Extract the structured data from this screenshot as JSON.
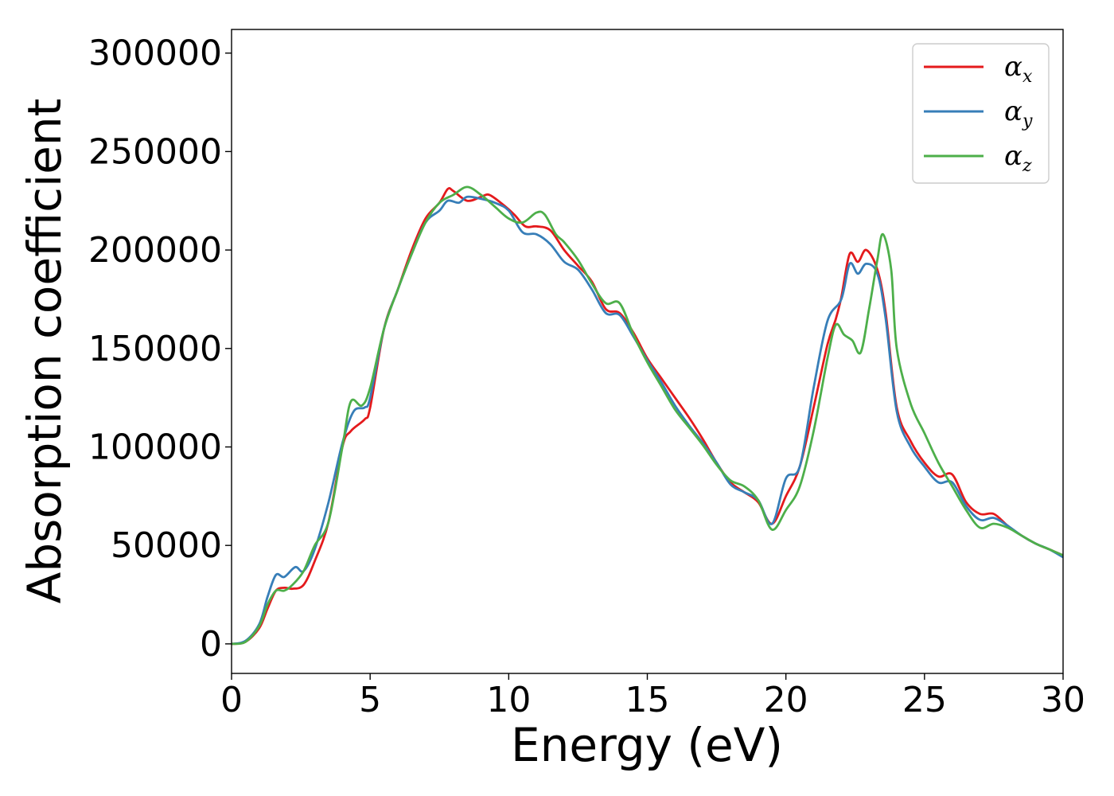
{
  "chart_data": {
    "type": "line",
    "title": "",
    "xlabel": "Energy (eV)",
    "ylabel": "Absorption coefficient",
    "xlim": [
      0,
      30
    ],
    "ylim": [
      -15000,
      312000
    ],
    "xticks": [
      0,
      5,
      10,
      15,
      20,
      25,
      30
    ],
    "yticks": [
      0,
      50000,
      100000,
      150000,
      200000,
      250000,
      300000
    ],
    "xtick_labels": [
      "0",
      "5",
      "10",
      "15",
      "20",
      "25",
      "30"
    ],
    "ytick_labels": [
      "0",
      "50000",
      "100000",
      "150000",
      "200000",
      "250000",
      "300000"
    ],
    "grid": false,
    "legend": "top-right",
    "series": [
      {
        "name": "α",
        "subscript": "x",
        "color": "#e41a1c",
        "points": [
          [
            0,
            0
          ],
          [
            0.5,
            1000
          ],
          [
            1,
            8000
          ],
          [
            1.3,
            18000
          ],
          [
            1.6,
            27000
          ],
          [
            1.9,
            28500
          ],
          [
            2.2,
            28000
          ],
          [
            2.6,
            30000
          ],
          [
            3,
            42000
          ],
          [
            3.5,
            62000
          ],
          [
            4,
            100000
          ],
          [
            4.3,
            108000
          ],
          [
            4.8,
            114000
          ],
          [
            5,
            120000
          ],
          [
            5.5,
            160000
          ],
          [
            6,
            180000
          ],
          [
            6.5,
            200000
          ],
          [
            7,
            216000
          ],
          [
            7.5,
            224000
          ],
          [
            7.8,
            231000
          ],
          [
            8,
            230000
          ],
          [
            8.5,
            225000
          ],
          [
            9,
            227000
          ],
          [
            9.3,
            228000
          ],
          [
            9.8,
            223000
          ],
          [
            10.2,
            218000
          ],
          [
            10.6,
            212000
          ],
          [
            11,
            212000
          ],
          [
            11.5,
            210000
          ],
          [
            12,
            200000
          ],
          [
            12.5,
            192000
          ],
          [
            13,
            184000
          ],
          [
            13.5,
            170000
          ],
          [
            14,
            168000
          ],
          [
            14.5,
            158000
          ],
          [
            15,
            145000
          ],
          [
            15.5,
            135000
          ],
          [
            16,
            125000
          ],
          [
            16.5,
            115000
          ],
          [
            17,
            104000
          ],
          [
            17.5,
            92000
          ],
          [
            18,
            82000
          ],
          [
            18.5,
            77000
          ],
          [
            19,
            72000
          ],
          [
            19.5,
            61000
          ],
          [
            20,
            75000
          ],
          [
            20.5,
            90000
          ],
          [
            21,
            120000
          ],
          [
            21.5,
            152000
          ],
          [
            21.8,
            165000
          ],
          [
            22,
            176000
          ],
          [
            22.3,
            198000
          ],
          [
            22.6,
            194000
          ],
          [
            22.9,
            200000
          ],
          [
            23.3,
            190000
          ],
          [
            23.6,
            168000
          ],
          [
            24,
            120000
          ],
          [
            24.5,
            103000
          ],
          [
            25,
            92000
          ],
          [
            25.5,
            85000
          ],
          [
            26,
            86000
          ],
          [
            26.5,
            72000
          ],
          [
            27,
            66000
          ],
          [
            27.5,
            66000
          ],
          [
            28,
            60000
          ],
          [
            28.5,
            55000
          ],
          [
            29,
            51000
          ],
          [
            29.5,
            48000
          ],
          [
            30,
            45000
          ]
        ]
      },
      {
        "name": "α",
        "subscript": "y",
        "color": "#377eb8",
        "points": [
          [
            0,
            0
          ],
          [
            0.5,
            1500
          ],
          [
            1,
            10000
          ],
          [
            1.3,
            24000
          ],
          [
            1.6,
            35000
          ],
          [
            1.9,
            34000
          ],
          [
            2.3,
            39000
          ],
          [
            2.6,
            37000
          ],
          [
            3,
            48000
          ],
          [
            3.5,
            72000
          ],
          [
            4,
            102000
          ],
          [
            4.4,
            118000
          ],
          [
            4.8,
            120000
          ],
          [
            5,
            125000
          ],
          [
            5.5,
            160000
          ],
          [
            6,
            180000
          ],
          [
            6.5,
            198000
          ],
          [
            7,
            214000
          ],
          [
            7.5,
            220000
          ],
          [
            7.8,
            225000
          ],
          [
            8.2,
            224000
          ],
          [
            8.5,
            227000
          ],
          [
            9,
            226000
          ],
          [
            9.5,
            224000
          ],
          [
            10,
            220000
          ],
          [
            10.5,
            209000
          ],
          [
            11,
            208000
          ],
          [
            11.5,
            203000
          ],
          [
            12,
            194000
          ],
          [
            12.5,
            190000
          ],
          [
            13,
            180000
          ],
          [
            13.5,
            168000
          ],
          [
            14,
            167000
          ],
          [
            14.5,
            156000
          ],
          [
            15,
            144000
          ],
          [
            15.5,
            133000
          ],
          [
            16,
            121000
          ],
          [
            16.5,
            111000
          ],
          [
            17,
            102000
          ],
          [
            17.5,
            92000
          ],
          [
            18,
            81000
          ],
          [
            18.5,
            77000
          ],
          [
            19,
            73000
          ],
          [
            19.5,
            61000
          ],
          [
            20,
            84000
          ],
          [
            20.5,
            90000
          ],
          [
            21,
            130000
          ],
          [
            21.5,
            164000
          ],
          [
            22,
            175000
          ],
          [
            22.3,
            193000
          ],
          [
            22.6,
            188000
          ],
          [
            22.9,
            193000
          ],
          [
            23.3,
            188000
          ],
          [
            23.6,
            165000
          ],
          [
            24,
            118000
          ],
          [
            24.5,
            100000
          ],
          [
            25,
            90000
          ],
          [
            25.5,
            82000
          ],
          [
            26,
            82000
          ],
          [
            26.5,
            70000
          ],
          [
            27,
            63000
          ],
          [
            27.5,
            64000
          ],
          [
            28,
            60000
          ],
          [
            28.5,
            55000
          ],
          [
            29,
            51000
          ],
          [
            29.5,
            48000
          ],
          [
            30,
            44000
          ]
        ]
      },
      {
        "name": "α",
        "subscript": "z",
        "color": "#4daf4a",
        "points": [
          [
            0,
            0
          ],
          [
            0.5,
            1000
          ],
          [
            1,
            9000
          ],
          [
            1.3,
            20000
          ],
          [
            1.6,
            27000
          ],
          [
            1.9,
            27000
          ],
          [
            2.2,
            30000
          ],
          [
            2.6,
            37000
          ],
          [
            3,
            50000
          ],
          [
            3.5,
            62000
          ],
          [
            4,
            100000
          ],
          [
            4.3,
            123000
          ],
          [
            4.7,
            121000
          ],
          [
            5,
            130000
          ],
          [
            5.5,
            160000
          ],
          [
            6,
            180000
          ],
          [
            6.5,
            198000
          ],
          [
            7,
            214000
          ],
          [
            7.5,
            224000
          ],
          [
            8,
            228000
          ],
          [
            8.5,
            232000
          ],
          [
            9,
            228000
          ],
          [
            9.5,
            222000
          ],
          [
            10,
            216000
          ],
          [
            10.5,
            214000
          ],
          [
            11,
            219000
          ],
          [
            11.3,
            218000
          ],
          [
            11.7,
            208000
          ],
          [
            12,
            204000
          ],
          [
            12.5,
            195000
          ],
          [
            13,
            183000
          ],
          [
            13.5,
            173000
          ],
          [
            14,
            173000
          ],
          [
            14.5,
            157000
          ],
          [
            15,
            143000
          ],
          [
            15.5,
            131000
          ],
          [
            16,
            119000
          ],
          [
            16.5,
            110000
          ],
          [
            17,
            101000
          ],
          [
            17.5,
            91000
          ],
          [
            18,
            83000
          ],
          [
            18.5,
            80000
          ],
          [
            19,
            73000
          ],
          [
            19.5,
            58000
          ],
          [
            20,
            68000
          ],
          [
            20.5,
            80000
          ],
          [
            21,
            108000
          ],
          [
            21.5,
            145000
          ],
          [
            21.8,
            162000
          ],
          [
            22.1,
            157000
          ],
          [
            22.4,
            154000
          ],
          [
            22.7,
            148000
          ],
          [
            23,
            170000
          ],
          [
            23.3,
            195000
          ],
          [
            23.5,
            208000
          ],
          [
            23.8,
            190000
          ],
          [
            24,
            150000
          ],
          [
            24.5,
            122000
          ],
          [
            25,
            107000
          ],
          [
            25.5,
            92000
          ],
          [
            26,
            80000
          ],
          [
            26.5,
            68000
          ],
          [
            27,
            59000
          ],
          [
            27.5,
            61000
          ],
          [
            28,
            59000
          ],
          [
            28.5,
            55000
          ],
          [
            29,
            51000
          ],
          [
            29.5,
            48000
          ],
          [
            30,
            45000
          ]
        ]
      }
    ]
  }
}
